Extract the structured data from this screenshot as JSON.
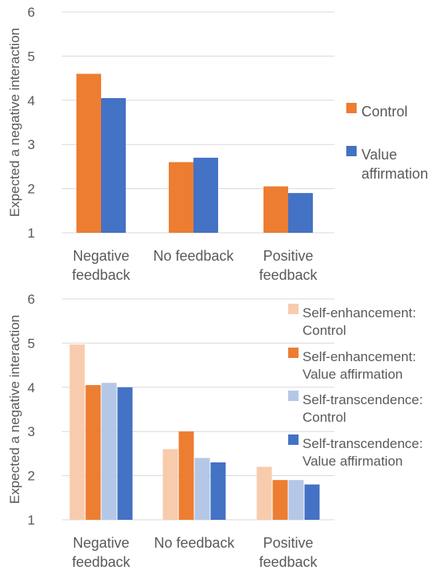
{
  "chart_data": [
    {
      "type": "bar",
      "ylabel": "Expected a negative interaction",
      "ylim": [
        1,
        6
      ],
      "yticks": [
        "1",
        "2",
        "3",
        "4",
        "5",
        "6"
      ],
      "categories": [
        [
          "Negative",
          "feedback"
        ],
        [
          "No feedback"
        ],
        [
          "Positive",
          "feedback"
        ]
      ],
      "grid": true,
      "legend_position": "right",
      "series": [
        {
          "name": [
            "Control"
          ],
          "color": "#ED7D31",
          "values": [
            4.6,
            2.6,
            2.05
          ]
        },
        {
          "name": [
            "Value",
            "affirmation"
          ],
          "color": "#4472C4",
          "values": [
            4.05,
            2.7,
            1.9
          ]
        }
      ]
    },
    {
      "type": "bar",
      "ylabel": "Expected a negative interaction",
      "ylim": [
        1,
        6
      ],
      "yticks": [
        "1",
        "2",
        "3",
        "4",
        "5",
        "6"
      ],
      "categories": [
        [
          "Negative",
          "feedback"
        ],
        [
          "No feedback"
        ],
        [
          "Positive",
          "feedback"
        ]
      ],
      "grid": true,
      "legend_position": "top-right",
      "series": [
        {
          "name": [
            "Self-enhancement:",
            "Control"
          ],
          "color": "#F8CBAD",
          "values": [
            4.97,
            2.6,
            2.2
          ]
        },
        {
          "name": [
            "Self-enhancement:",
            "Value affirmation"
          ],
          "color": "#ED7D31",
          "values": [
            4.05,
            3.0,
            1.9
          ]
        },
        {
          "name": [
            "Self-transcendence:",
            "Control"
          ],
          "color": "#B4C7E7",
          "values": [
            4.1,
            2.4,
            1.9
          ]
        },
        {
          "name": [
            "Self-transcendence:",
            "Value affirmation"
          ],
          "color": "#4472C4",
          "values": [
            4.0,
            2.3,
            1.8
          ]
        }
      ]
    }
  ]
}
